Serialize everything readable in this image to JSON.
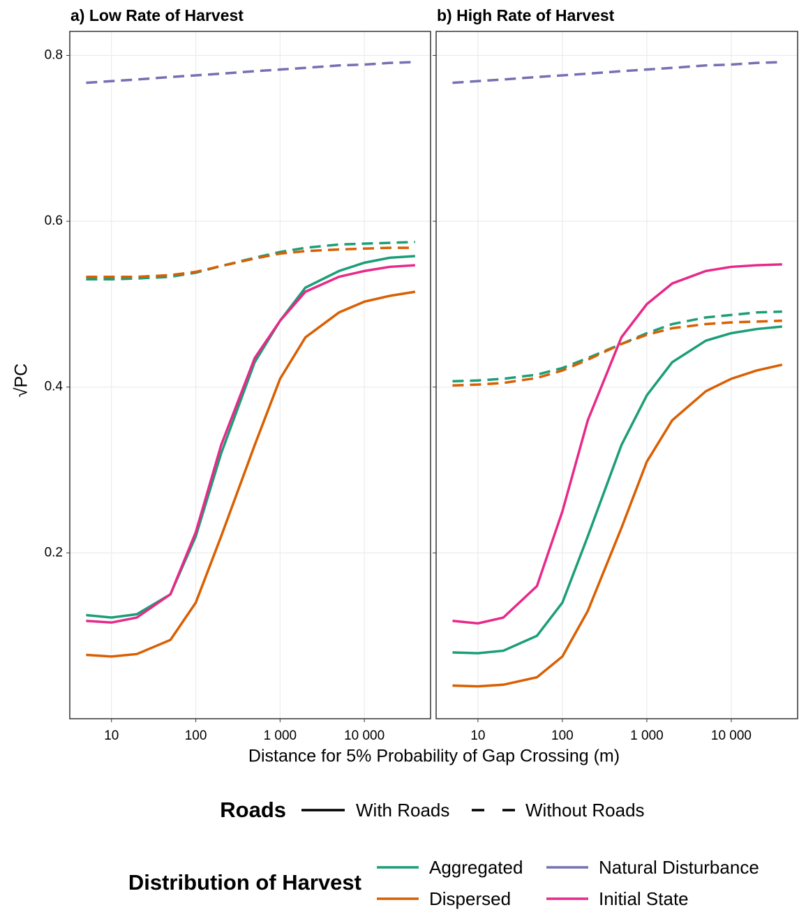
{
  "chart_data": [
    {
      "type": "line",
      "title": "a) Low Rate of Harvest",
      "xscale": "log",
      "grid": true,
      "ytick_labels": true,
      "xlim": [
        3.2,
        61000
      ],
      "ylim": [
        0,
        0.829
      ],
      "xticks": [
        10,
        100,
        {
          "value": 1000,
          "label": "1 000"
        },
        {
          "value": 10000,
          "label": "10 000"
        }
      ],
      "yticks": [
        0.2,
        0.4,
        0.6,
        0.8
      ],
      "x": [
        5,
        10,
        20,
        50,
        100,
        200,
        500,
        1000,
        2000,
        5000,
        10000,
        20000,
        40000
      ],
      "series": [
        {
          "name": "Natural Disturbance",
          "linetype": "dashed",
          "color": "#7570b3",
          "values": [
            0.767,
            0.769,
            0.771,
            0.774,
            0.776,
            0.778,
            0.781,
            0.783,
            0.785,
            0.788,
            0.789,
            0.791,
            0.792
          ]
        },
        {
          "name": "Aggregated",
          "linetype": "dashed",
          "color": "#1b9e77",
          "values": [
            0.53,
            0.53,
            0.531,
            0.533,
            0.538,
            0.546,
            0.556,
            0.563,
            0.568,
            0.572,
            0.573,
            0.574,
            0.575
          ]
        },
        {
          "name": "Dispersed",
          "linetype": "dashed",
          "color": "#d95f02",
          "values": [
            0.533,
            0.533,
            0.533,
            0.535,
            0.539,
            0.546,
            0.555,
            0.561,
            0.564,
            0.566,
            0.567,
            0.568,
            0.568
          ]
        },
        {
          "name": "Aggregated",
          "linetype": "solid",
          "color": "#1b9e77",
          "values": [
            0.125,
            0.122,
            0.126,
            0.15,
            0.22,
            0.32,
            0.43,
            0.48,
            0.52,
            0.54,
            0.55,
            0.556,
            0.558
          ]
        },
        {
          "name": "Initial State",
          "linetype": "solid",
          "color": "#e7298a",
          "values": [
            0.118,
            0.116,
            0.122,
            0.15,
            0.225,
            0.33,
            0.435,
            0.48,
            0.515,
            0.533,
            0.54,
            0.545,
            0.547
          ]
        },
        {
          "name": "Dispersed",
          "linetype": "solid",
          "color": "#d95f02",
          "values": [
            0.077,
            0.075,
            0.078,
            0.095,
            0.14,
            0.22,
            0.33,
            0.41,
            0.46,
            0.49,
            0.503,
            0.51,
            0.515
          ]
        }
      ]
    },
    {
      "type": "line",
      "title": "b) High Rate of Harvest",
      "xscale": "log",
      "grid": true,
      "ytick_labels": false,
      "xlim": [
        3.2,
        61000
      ],
      "ylim": [
        0,
        0.829
      ],
      "xticks": [
        10,
        100,
        {
          "value": 1000,
          "label": "1 000"
        },
        {
          "value": 10000,
          "label": "10 000"
        }
      ],
      "yticks": [
        0.2,
        0.4,
        0.6,
        0.8
      ],
      "x": [
        5,
        10,
        20,
        50,
        100,
        200,
        500,
        1000,
        2000,
        5000,
        10000,
        20000,
        40000
      ],
      "series": [
        {
          "name": "Natural Disturbance",
          "linetype": "dashed",
          "color": "#7570b3",
          "values": [
            0.767,
            0.769,
            0.771,
            0.774,
            0.776,
            0.778,
            0.781,
            0.783,
            0.785,
            0.788,
            0.789,
            0.791,
            0.792
          ]
        },
        {
          "name": "Aggregated",
          "linetype": "dashed",
          "color": "#1b9e77",
          "values": [
            0.407,
            0.408,
            0.41,
            0.415,
            0.423,
            0.435,
            0.452,
            0.465,
            0.476,
            0.484,
            0.487,
            0.49,
            0.491
          ]
        },
        {
          "name": "Dispersed",
          "linetype": "dashed",
          "color": "#d95f02",
          "values": [
            0.402,
            0.403,
            0.405,
            0.411,
            0.42,
            0.433,
            0.452,
            0.463,
            0.471,
            0.476,
            0.478,
            0.479,
            0.48
          ]
        },
        {
          "name": "Initial State",
          "linetype": "solid",
          "color": "#e7298a",
          "values": [
            0.118,
            0.115,
            0.122,
            0.16,
            0.25,
            0.36,
            0.46,
            0.5,
            0.525,
            0.54,
            0.545,
            0.547,
            0.548
          ]
        },
        {
          "name": "Aggregated",
          "linetype": "solid",
          "color": "#1b9e77",
          "values": [
            0.08,
            0.079,
            0.082,
            0.1,
            0.14,
            0.22,
            0.33,
            0.39,
            0.43,
            0.456,
            0.465,
            0.47,
            0.473
          ]
        },
        {
          "name": "Dispersed",
          "linetype": "solid",
          "color": "#d95f02",
          "values": [
            0.04,
            0.039,
            0.041,
            0.05,
            0.075,
            0.13,
            0.23,
            0.31,
            0.36,
            0.395,
            0.41,
            0.42,
            0.427
          ]
        }
      ]
    }
  ],
  "shared": {
    "x_label": "Distance for 5% Probability of Gap Crossing (m)",
    "y_label": "√PC",
    "legend_roads": {
      "title": "Roads",
      "entries": [
        {
          "label": "With Roads",
          "linetype": "solid"
        },
        {
          "label": "Without Roads",
          "linetype": "dashed"
        }
      ]
    },
    "legend_harvest": {
      "title": "Distribution of Harvest",
      "entries": [
        {
          "label": "Aggregated",
          "color": "#1b9e77"
        },
        {
          "label": "Dispersed",
          "color": "#d95f02"
        },
        {
          "label": "Natural Disturbance",
          "color": "#7570b3"
        },
        {
          "label": "Initial State",
          "color": "#e7298a"
        }
      ]
    }
  }
}
